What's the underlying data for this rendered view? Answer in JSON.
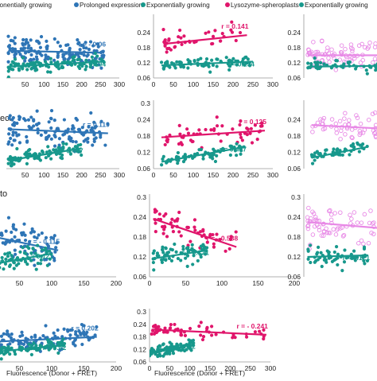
{
  "legend": {
    "entries": [
      {
        "label": "ponentially growing",
        "color": "#2e75b6",
        "marker": "dot"
      },
      {
        "label": "Prolonged expression",
        "color": "#2e75b6",
        "marker": "dot"
      },
      {
        "label": "Exponentially growing",
        "color": "#17988c",
        "marker": "dot"
      },
      {
        "label": "Lysozyme-spheroplasts",
        "color": "#e0156b",
        "marker": "dot"
      },
      {
        "label": "Exponentially growing",
        "color": "#17988c",
        "marker": "dot"
      }
    ]
  },
  "row_labels": [
    "eci",
    "to"
  ],
  "colors": {
    "blue": "#2e75b6",
    "teal": "#17988c",
    "magenta": "#e0156b",
    "pink": "#e88ae6",
    "axis": "#999999",
    "text": "#222222"
  },
  "chart_data": [
    {
      "type": "scatter",
      "id": "r1c1",
      "xlim": [
        0,
        300
      ],
      "x_ticks": [
        "50",
        "100",
        "150",
        "200",
        "250",
        "300"
      ],
      "ylim": [
        0.06,
        0.3
      ],
      "y_ticks": [],
      "series": [
        {
          "color": "blue",
          "style": "filled",
          "n": 150,
          "x_range": [
            5,
            260
          ],
          "y_fit": [
            0.168,
            0.16
          ],
          "spread": 0.045,
          "annotation": "r = - 0.06"
        },
        {
          "color": "teal",
          "style": "filled",
          "n": 110,
          "x_range": [
            5,
            260
          ],
          "y_fit": [
            0.105,
            0.125
          ],
          "spread": 0.02,
          "annotation": "r = 0.194"
        }
      ]
    },
    {
      "type": "scatter",
      "id": "r1c2",
      "xlim": [
        0,
        300
      ],
      "x_ticks": [
        "0",
        "50",
        "100",
        "150",
        "200",
        "250",
        "300"
      ],
      "ylim": [
        0.06,
        0.3
      ],
      "y_ticks": [
        "0.06",
        "0.12",
        "0.18",
        "0.24"
      ],
      "series": [
        {
          "color": "magenta",
          "style": "filled",
          "n": 40,
          "x_range": [
            25,
            235
          ],
          "y_fit": [
            0.195,
            0.23
          ],
          "spread": 0.035,
          "annotation": "r = 0.141"
        },
        {
          "color": "teal",
          "style": "filled",
          "n": 80,
          "x_range": [
            20,
            250
          ],
          "y_fit": [
            0.11,
            0.125
          ],
          "spread": 0.02,
          "annotation": "r = 0.194"
        }
      ]
    },
    {
      "type": "scatter",
      "id": "r1c3",
      "xlim": [
        0,
        300
      ],
      "x_ticks": [],
      "ylim": [
        0.06,
        0.3
      ],
      "y_ticks": [
        "0.06",
        "0.12",
        "0.18",
        "0.24"
      ],
      "series": [
        {
          "color": "pink",
          "style": "open",
          "n": 110,
          "x_range": [
            10,
            300
          ],
          "y_fit": [
            0.15,
            0.15
          ],
          "spread": 0.04,
          "annotation": ""
        },
        {
          "color": "teal",
          "style": "filled",
          "n": 80,
          "x_range": [
            10,
            300
          ],
          "y_fit": [
            0.105,
            0.11
          ],
          "spread": 0.018,
          "annotation": ""
        }
      ]
    },
    {
      "type": "scatter",
      "id": "r2c1",
      "xlim": [
        0,
        300
      ],
      "x_ticks": [
        "50",
        "100",
        "150",
        "200",
        "250",
        "300"
      ],
      "ylim": [
        0.06,
        0.3
      ],
      "y_ticks": [],
      "series": [
        {
          "color": "blue",
          "style": "filled",
          "n": 130,
          "x_range": [
            5,
            270
          ],
          "y_fit": [
            0.205,
            0.19
          ],
          "spread": 0.05,
          "annotation": "r = 0.119"
        },
        {
          "color": "teal",
          "style": "filled",
          "n": 100,
          "x_range": [
            5,
            200
          ],
          "y_fit": [
            0.09,
            0.135
          ],
          "spread": 0.02,
          "annotation": "r = 0.407"
        }
      ]
    },
    {
      "type": "scatter",
      "id": "r2c2",
      "xlim": [
        0,
        300
      ],
      "x_ticks": [
        "0",
        "50",
        "100",
        "150",
        "200",
        "250",
        "300"
      ],
      "ylim": [
        0.06,
        0.3
      ],
      "y_ticks": [
        "0.06",
        "0.12",
        "0.18",
        "0.24",
        "0.3"
      ],
      "series": [
        {
          "color": "magenta",
          "style": "filled",
          "n": 55,
          "x_range": [
            20,
            280
          ],
          "y_fit": [
            0.175,
            0.2
          ],
          "spread": 0.04,
          "annotation": "r = 0.125"
        },
        {
          "color": "teal",
          "style": "filled",
          "n": 70,
          "x_range": [
            20,
            230
          ],
          "y_fit": [
            0.085,
            0.14
          ],
          "spread": 0.02,
          "annotation": "r = 0.407"
        }
      ]
    },
    {
      "type": "scatter",
      "id": "r2c3",
      "xlim": [
        0,
        300
      ],
      "x_ticks": [],
      "ylim": [
        0.06,
        0.3
      ],
      "y_ticks": [
        "0.06",
        "0.12",
        "0.18",
        "0.24"
      ],
      "series": [
        {
          "color": "pink",
          "style": "open",
          "n": 70,
          "x_range": [
            20,
            300
          ],
          "y_fit": [
            0.22,
            0.2
          ],
          "spread": 0.04,
          "annotation": ""
        },
        {
          "color": "teal",
          "style": "filled",
          "n": 55,
          "x_range": [
            20,
            160
          ],
          "y_fit": [
            0.1,
            0.14
          ],
          "spread": 0.02,
          "annotation": ""
        }
      ]
    },
    {
      "type": "scatter",
      "id": "r3c1",
      "xlim": [
        0,
        200
      ],
      "x_ticks": [
        "0",
        "50",
        "100",
        "150",
        "200"
      ],
      "ylim": [
        0.06,
        0.3
      ],
      "y_ticks": [],
      "series": [
        {
          "color": "blue",
          "style": "filled",
          "n": 110,
          "x_range": [
            0,
            110
          ],
          "y_fit": [
            0.185,
            0.14
          ],
          "spread": 0.05,
          "annotation": "r = - 0.115"
        },
        {
          "color": "teal",
          "style": "filled",
          "n": 80,
          "x_range": [
            0,
            100
          ],
          "y_fit": [
            0.095,
            0.13
          ],
          "spread": 0.025,
          "annotation": "r = 0.121"
        }
      ]
    },
    {
      "type": "scatter",
      "id": "r3c2",
      "xlim": [
        0,
        200
      ],
      "x_ticks": [
        "0",
        "50",
        "100",
        "150",
        "200"
      ],
      "ylim": [
        0.06,
        0.3
      ],
      "y_ticks": [
        "0.06",
        "0.12",
        "0.18",
        "0.24",
        "0.3"
      ],
      "series": [
        {
          "color": "magenta",
          "style": "filled",
          "n": 60,
          "x_range": [
            5,
            120
          ],
          "y_fit": [
            0.235,
            0.15
          ],
          "spread": 0.035,
          "annotation": "r = - 0.538"
        },
        {
          "color": "teal",
          "style": "filled",
          "n": 70,
          "x_range": [
            5,
            80
          ],
          "y_fit": [
            0.115,
            0.14
          ],
          "spread": 0.025,
          "annotation": "r = 0.121"
        }
      ]
    },
    {
      "type": "scatter",
      "id": "r3c3",
      "xlim": [
        0,
        200
      ],
      "x_ticks": [],
      "ylim": [
        0.06,
        0.3
      ],
      "y_ticks": [
        "0.06",
        "0.12",
        "0.18",
        "0.24",
        "0.3"
      ],
      "series": [
        {
          "color": "pink",
          "style": "open",
          "n": 110,
          "x_range": [
            5,
            200
          ],
          "y_fit": [
            0.225,
            0.19
          ],
          "spread": 0.04,
          "annotation": ""
        },
        {
          "color": "teal",
          "style": "filled",
          "n": 60,
          "x_range": [
            5,
            90
          ],
          "y_fit": [
            0.12,
            0.125
          ],
          "spread": 0.025,
          "annotation": "r = 0.121"
        }
      ]
    },
    {
      "type": "scatter",
      "id": "r4c1",
      "xlim": [
        0,
        200
      ],
      "x_ticks": [
        "0",
        "50",
        "100",
        "150",
        "200"
      ],
      "ylim": [
        0.06,
        0.3
      ],
      "y_ticks": [],
      "series": [
        {
          "color": "blue",
          "style": "filled",
          "n": 140,
          "x_range": [
            0,
            170
          ],
          "y_fit": [
            0.155,
            0.18
          ],
          "spread": 0.04,
          "annotation": "r = 0.202"
        },
        {
          "color": "teal",
          "style": "filled",
          "n": 120,
          "x_range": [
            0,
            120
          ],
          "y_fit": [
            0.105,
            0.14
          ],
          "spread": 0.025,
          "annotation": "r = 0.42"
        }
      ]
    },
    {
      "type": "scatter",
      "id": "r4c2",
      "xlim": [
        0,
        300
      ],
      "x_ticks": [
        "0",
        "50",
        "100",
        "150",
        "200",
        "250",
        "300"
      ],
      "ylim": [
        0.06,
        0.3
      ],
      "y_ticks": [
        "0.06",
        "0.12",
        "0.18",
        "0.24",
        "0.3"
      ],
      "series": [
        {
          "color": "magenta",
          "style": "filled",
          "n": 60,
          "x_range": [
            5,
            290
          ],
          "y_fit": [
            0.215,
            0.19
          ],
          "spread": 0.03,
          "annotation": "r = - 0.241"
        },
        {
          "color": "teal",
          "style": "filled",
          "n": 110,
          "x_range": [
            0,
            110
          ],
          "y_fit": [
            0.1,
            0.145
          ],
          "spread": 0.025,
          "annotation": "r = 0.42"
        }
      ]
    }
  ],
  "x_axis_label": "Fluorescence (Donor + FRET)"
}
